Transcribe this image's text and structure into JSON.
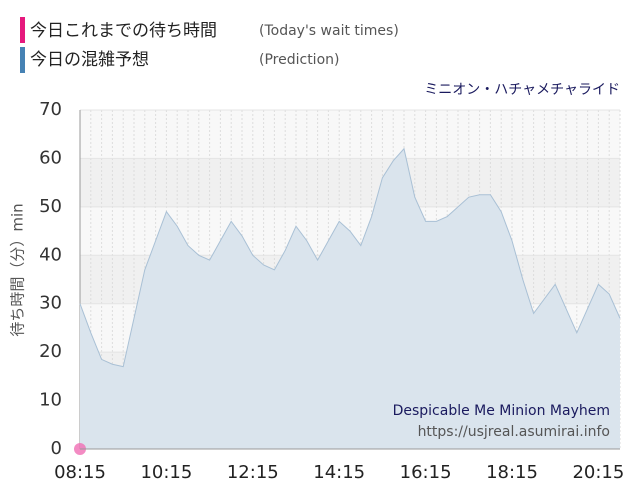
{
  "chart_data": {
    "type": "area",
    "title": "ミニオン・ハチャメチャライド",
    "y_label": "待ち時間（分）min",
    "annotations": [
      "Despicable Me Minion Mayhem",
      "https://usjreal.asumirai.info"
    ],
    "x": [
      "08:15",
      "08:30",
      "08:45",
      "09:00",
      "09:15",
      "09:30",
      "09:45",
      "10:00",
      "10:15",
      "10:30",
      "10:45",
      "11:00",
      "11:15",
      "11:30",
      "11:45",
      "12:00",
      "12:15",
      "12:30",
      "12:45",
      "13:00",
      "13:15",
      "13:30",
      "13:45",
      "14:00",
      "14:15",
      "14:30",
      "14:45",
      "15:00",
      "15:15",
      "15:30",
      "15:45",
      "16:00",
      "16:15",
      "16:30",
      "16:45",
      "17:00",
      "17:15",
      "17:30",
      "17:45",
      "18:00",
      "18:15",
      "18:30",
      "18:45",
      "19:00",
      "19:15",
      "19:30",
      "19:45",
      "20:00",
      "20:15",
      "20:30",
      "20:45"
    ],
    "series": [
      {
        "name": "今日これまでの待ち時間",
        "name_en": "(Today's wait times)",
        "color": "#f06eb4",
        "values": [
          0,
          null,
          null,
          null,
          null,
          null,
          null,
          null,
          null,
          null,
          null,
          null,
          null,
          null,
          null,
          null,
          null,
          null,
          null,
          null,
          null,
          null,
          null,
          null,
          null,
          null,
          null,
          null,
          null,
          null,
          null,
          null,
          null,
          null,
          null,
          null,
          null,
          null,
          null,
          null,
          null,
          null,
          null,
          null,
          null,
          null,
          null,
          null,
          null,
          null,
          null
        ]
      },
      {
        "name": "今日の混雑予想",
        "name_en": "(Prediction)",
        "color": "#4a7fb0",
        "values": [
          30,
          24,
          18.5,
          17.5,
          17,
          27,
          37,
          43,
          49,
          46,
          42,
          40,
          39,
          43,
          47,
          44,
          40,
          38,
          37,
          41,
          46,
          43,
          39,
          43,
          47,
          45,
          42,
          48,
          56,
          59.5,
          62,
          52,
          47,
          47,
          48,
          50,
          52,
          52.5,
          52.5,
          49,
          43,
          35,
          28,
          31,
          34,
          29,
          24,
          29,
          34,
          32,
          27
        ]
      }
    ],
    "xlim": [
      "08:15",
      "20:45"
    ],
    "xticks": [
      "08:15",
      "10:15",
      "12:15",
      "14:15",
      "16:15",
      "18:15",
      "20:15"
    ],
    "ylim": [
      0,
      70
    ],
    "yticks": [
      0,
      10,
      20,
      30,
      40,
      50,
      60,
      70
    ],
    "grid": true
  }
}
